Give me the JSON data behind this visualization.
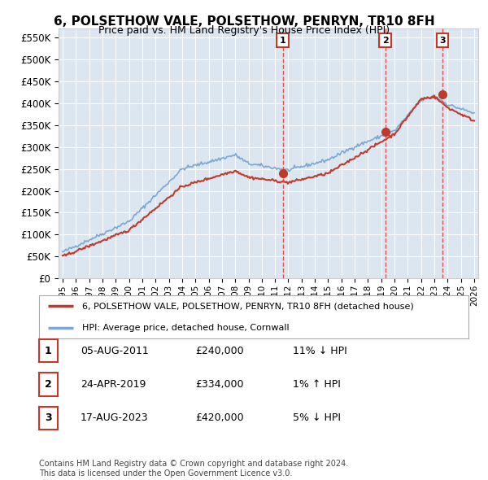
{
  "title": "6, POLSETHOW VALE, POLSETHOW, PENRYN, TR10 8FH",
  "subtitle": "Price paid vs. HM Land Registry's House Price Index (HPI)",
  "ylim": [
    0,
    570000
  ],
  "yticks": [
    0,
    50000,
    100000,
    150000,
    200000,
    250000,
    300000,
    350000,
    400000,
    450000,
    500000,
    550000
  ],
  "x_start_year": 1995,
  "x_end_year": 2026,
  "background_color": "#ffffff",
  "plot_bg_color": "#dce6f1",
  "grid_color": "#ffffff",
  "hpi_line_color": "#7ba7d4",
  "price_line_color": "#c0392b",
  "vline_color": "#e05050",
  "marker_color": "#c0392b",
  "sale_year_floats": [
    2011.58,
    2019.29,
    2023.62
  ],
  "sale_prices": [
    240000,
    334000,
    420000
  ],
  "sale_labels": [
    "1",
    "2",
    "3"
  ],
  "legend_label_red": "6, POLSETHOW VALE, POLSETHOW, PENRYN, TR10 8FH (detached house)",
  "legend_label_blue": "HPI: Average price, detached house, Cornwall",
  "table_data": [
    [
      "1",
      "05-AUG-2011",
      "£240,000",
      "11% ↓ HPI"
    ],
    [
      "2",
      "24-APR-2019",
      "£334,000",
      "1% ↑ HPI"
    ],
    [
      "3",
      "17-AUG-2023",
      "£420,000",
      "5% ↓ HPI"
    ]
  ],
  "footer": "Contains HM Land Registry data © Crown copyright and database right 2024.\nThis data is licensed under the Open Government Licence v3.0.",
  "label_box_edge": "#c0392b"
}
